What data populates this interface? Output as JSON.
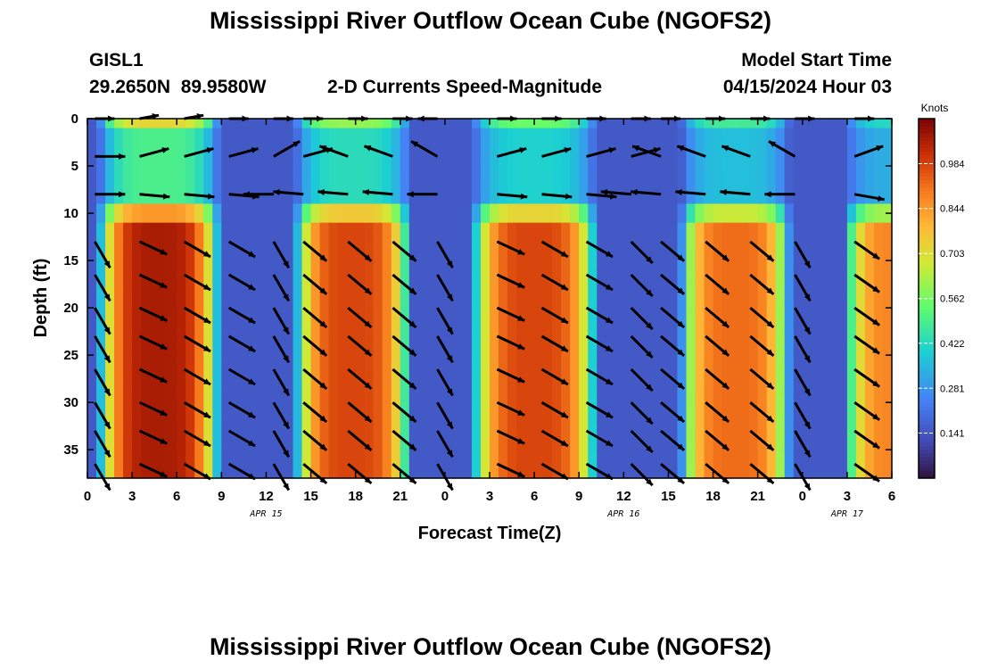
{
  "title": "Mississippi River Outflow Ocean Cube (NGOFS2)",
  "station": {
    "id": "GISL1",
    "coords": "29.2650N  89.9580W"
  },
  "subtitle": "2-D Currents Speed-Magnitude",
  "model": {
    "label": "Model Start Time",
    "time": "04/15/2024 Hour 03"
  },
  "footer_title": "Mississippi River Outflow Ocean Cube (NGOFS2)",
  "chart_data": {
    "type": "heatmap",
    "xlabel": "Forecast Time(Z)",
    "ylabel": "Depth (ft)",
    "x_range_hours": [
      0,
      54
    ],
    "xticks": [
      {
        "hour": 0,
        "label": "0"
      },
      {
        "hour": 3,
        "label": "3"
      },
      {
        "hour": 6,
        "label": "6"
      },
      {
        "hour": 9,
        "label": "9"
      },
      {
        "hour": 12,
        "label": "12"
      },
      {
        "hour": 15,
        "label": "15"
      },
      {
        "hour": 18,
        "label": "18"
      },
      {
        "hour": 21,
        "label": "21"
      },
      {
        "hour": 24,
        "label": "0"
      },
      {
        "hour": 27,
        "label": "3"
      },
      {
        "hour": 30,
        "label": "6"
      },
      {
        "hour": 33,
        "label": "9"
      },
      {
        "hour": 36,
        "label": "12"
      },
      {
        "hour": 39,
        "label": "15"
      },
      {
        "hour": 42,
        "label": "18"
      },
      {
        "hour": 45,
        "label": "21"
      },
      {
        "hour": 48,
        "label": "0"
      },
      {
        "hour": 51,
        "label": "3"
      },
      {
        "hour": 54,
        "label": "6"
      }
    ],
    "date_labels": [
      {
        "hour": 12,
        "label": "APR 15"
      },
      {
        "hour": 36,
        "label": "APR 16"
      },
      {
        "hour": 51,
        "label": "APR 17"
      }
    ],
    "y_range_ft": [
      0,
      38
    ],
    "yticks": [
      0,
      5,
      10,
      15,
      20,
      25,
      30,
      35
    ],
    "colorbar": {
      "label": "Knots",
      "range": [
        0,
        1.125
      ],
      "ticks": [
        "0.141",
        "0.281",
        "0.422",
        "0.562",
        "0.703",
        "0.844",
        "0.984"
      ]
    },
    "surface_layer_ft": 8.5,
    "lower_layer_top_ft": 11,
    "peaks": [
      {
        "center_hour": 4.8,
        "half_width_hours": 4.2,
        "surface_speed": 0.72,
        "deep_speed": 1.06
      },
      {
        "center_hour": 17.8,
        "half_width_hours": 4.0,
        "surface_speed": 0.6,
        "deep_speed": 0.98
      },
      {
        "center_hour": 30.0,
        "half_width_hours": 4.3,
        "surface_speed": 0.55,
        "deep_speed": 0.98
      },
      {
        "center_hour": 43.5,
        "half_width_hours": 3.8,
        "surface_speed": 0.48,
        "deep_speed": 0.92
      },
      {
        "center_hour": 54.5,
        "half_width_hours": 3.8,
        "surface_speed": 0.42,
        "deep_speed": 0.88
      }
    ],
    "arrow_rows_ft": [
      0,
      4,
      8,
      13,
      16.5,
      20,
      23,
      26.5,
      30,
      33,
      36.5
    ],
    "arrow_columns_hours": [
      0.5,
      3.5,
      6.5,
      9.5,
      12.5,
      14.5,
      17.5,
      20.5,
      23.5,
      27.5,
      30.5,
      33.5,
      36.5,
      38.5,
      41.5,
      44.5,
      47.5,
      51.5
    ],
    "arrow_directions_deg": {
      "surface_top": [
        0,
        10,
        10,
        0,
        0,
        0,
        0,
        0,
        180,
        0,
        0,
        0,
        0,
        0,
        0,
        0,
        0,
        0
      ],
      "surface_mid": [
        0,
        15,
        15,
        15,
        30,
        15,
        160,
        160,
        150,
        15,
        15,
        15,
        15,
        160,
        160,
        160,
        150,
        20
      ],
      "surface_bottom": [
        0,
        -5,
        -5,
        -5,
        180,
        175,
        175,
        175,
        180,
        -5,
        -5,
        -5,
        175,
        175,
        175,
        175,
        180,
        -10
      ],
      "deep": [
        -60,
        -25,
        -30,
        -30,
        -60,
        -40,
        -40,
        -40,
        -60,
        -25,
        -30,
        -30,
        -45,
        -40,
        -40,
        -40,
        -60,
        -35
      ]
    }
  }
}
